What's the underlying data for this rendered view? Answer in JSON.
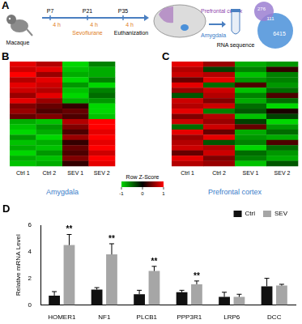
{
  "panel_a": {
    "label": "A",
    "subject": "Macaque",
    "timepoints": [
      "P7",
      "P21",
      "P35"
    ],
    "durations": [
      "4 h",
      "4 h",
      "4 h"
    ],
    "treatment": "Sevoflurane",
    "endpoint": "Euthanization",
    "regions": [
      "Prefrontal cortex",
      "Amygdala"
    ],
    "method": "RNA sequence",
    "venn": [
      276,
      111,
      6415
    ]
  },
  "heatmaps": [
    {
      "label": "B",
      "type": "heatmap",
      "title": "Amygdala",
      "columns": [
        "Ctrl 1",
        "Ctrl 2",
        "SEV 1",
        "SEV 2"
      ],
      "cells": [
        [
          0.9,
          0.7,
          -1,
          -0.6
        ],
        [
          0.8,
          0.9,
          -0.9,
          -0.8
        ],
        [
          1,
          0.6,
          -0.8,
          -0.8
        ],
        [
          0.7,
          0.9,
          -1,
          -0.6
        ],
        [
          0.9,
          0.8,
          -0.7,
          -1
        ],
        [
          0.8,
          0.7,
          -0.9,
          -0.6
        ],
        [
          0.6,
          0.9,
          -1,
          -0.5
        ],
        [
          0.9,
          0.6,
          -0.8,
          -0.7
        ],
        [
          0.5,
          0.4,
          0.2,
          -1
        ],
        [
          0.6,
          0.3,
          0.4,
          -1
        ],
        [
          0.4,
          0.5,
          0.3,
          -0.9
        ],
        [
          -0.8,
          -0.9,
          0.7,
          1
        ],
        [
          -0.9,
          -0.7,
          0.5,
          1
        ],
        [
          -1,
          -0.8,
          0.3,
          0.9
        ],
        [
          -0.7,
          -1,
          0.6,
          1
        ],
        [
          -0.9,
          -0.8,
          0.2,
          0.9
        ],
        [
          -0.8,
          -0.9,
          0.4,
          1
        ],
        [
          -1,
          -0.7,
          0.3,
          0.8
        ],
        [
          -0.8,
          -0.9,
          0.5,
          1
        ],
        [
          -0.9,
          -0.8,
          0.2,
          0.9
        ]
      ]
    },
    {
      "label": "C",
      "type": "heatmap",
      "title": "Prefrontal cortex",
      "columns": [
        "Ctrl 1",
        "Ctrl 2",
        "SEV 1",
        "SEV 2"
      ],
      "cells": [
        [
          0.9,
          0.6,
          -0.8,
          -0.7
        ],
        [
          0.7,
          -0.3,
          -0.6,
          0.2
        ],
        [
          0.8,
          0.7,
          -0.9,
          -0.6
        ],
        [
          0.4,
          0.9,
          -0.7,
          -0.6
        ],
        [
          0.9,
          -0.5,
          0.3,
          -0.7
        ],
        [
          0.6,
          0.8,
          -0.9,
          -0.5
        ],
        [
          -0.4,
          0.7,
          -0.6,
          0.3
        ],
        [
          0.8,
          0.5,
          -0.8,
          -0.5
        ],
        [
          0.7,
          0.8,
          -0.5,
          -1
        ],
        [
          0.9,
          -0.6,
          -0.4,
          0.1
        ],
        [
          0.5,
          0.7,
          -0.9,
          -0.3
        ],
        [
          0.8,
          0.6,
          -0.3,
          -1
        ],
        [
          -0.5,
          0.8,
          0.4,
          -0.7
        ],
        [
          0.9,
          0.4,
          -0.8,
          -0.5
        ],
        [
          0.6,
          0.9,
          -0.7,
          -0.8
        ],
        [
          0.7,
          -0.4,
          -0.6,
          0.3
        ],
        [
          0.8,
          0.7,
          -1,
          -0.5
        ],
        [
          0.4,
          0.8,
          -0.5,
          -0.7
        ],
        [
          0.9,
          0.5,
          -0.6,
          -0.8
        ],
        [
          0.7,
          0.6,
          -0.9,
          -0.4
        ]
      ]
    }
  ],
  "colorbar": {
    "title": "Row Z-Score",
    "range": [
      -1,
      1
    ],
    "ticks": [
      -1,
      0,
      1
    ]
  },
  "chart_data": {
    "label": "D",
    "type": "bar",
    "categories": [
      "HOMER1",
      "NF1",
      "PLCB1",
      "PPP3R1",
      "LRP6",
      "DCC"
    ],
    "series": [
      {
        "name": "Ctrl",
        "color": "#111111",
        "values": [
          0.7,
          1.15,
          0.8,
          0.95,
          0.6,
          1.4
        ],
        "errors": [
          0.3,
          0.15,
          0.3,
          0.15,
          0.35,
          0.6
        ]
      },
      {
        "name": "SEV",
        "color": "#a6a6a6",
        "values": [
          4.5,
          3.8,
          2.55,
          1.55,
          0.6,
          1.45
        ],
        "errors": [
          0.8,
          0.8,
          0.35,
          0.25,
          0.2,
          0.1
        ]
      }
    ],
    "y_label": "Relative mRNA Level",
    "ylim": [
      0,
      6
    ],
    "yticks": [
      0,
      2,
      4,
      6
    ],
    "grid": false,
    "legend": "top-right",
    "annotations": [
      {
        "category": "HOMER1",
        "series": "SEV",
        "text": "**"
      },
      {
        "category": "NF1",
        "series": "SEV",
        "text": "**"
      },
      {
        "category": "PLCB1",
        "series": "SEV",
        "text": "**"
      },
      {
        "category": "PPP3R1",
        "series": "SEV",
        "text": "**"
      }
    ]
  }
}
